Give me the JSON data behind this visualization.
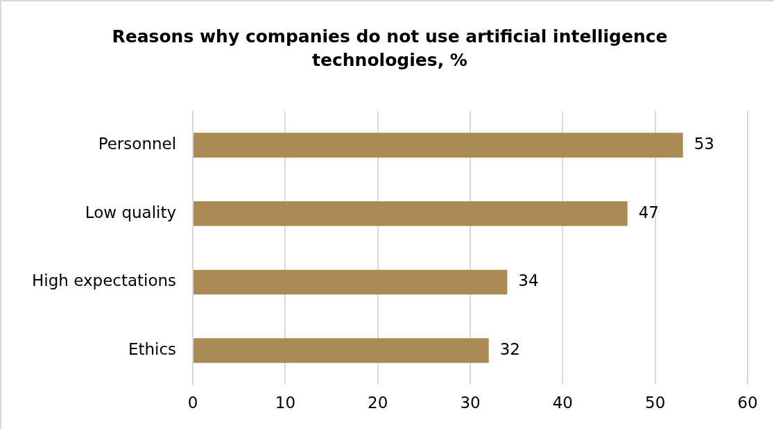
{
  "chart_data": {
    "type": "bar",
    "orientation": "horizontal",
    "title": "Reasons why companies do not use artificial intelligence technologies, %",
    "categories": [
      "Personnel",
      "Low quality",
      "High expectations",
      "Ethics"
    ],
    "values": [
      53,
      47,
      34,
      32
    ],
    "color": "#a88a52",
    "xlim": [
      0,
      60
    ],
    "xticks": [
      0,
      10,
      20,
      30,
      40,
      50,
      60
    ],
    "grid": "x",
    "data_labels": true,
    "legend": false
  }
}
